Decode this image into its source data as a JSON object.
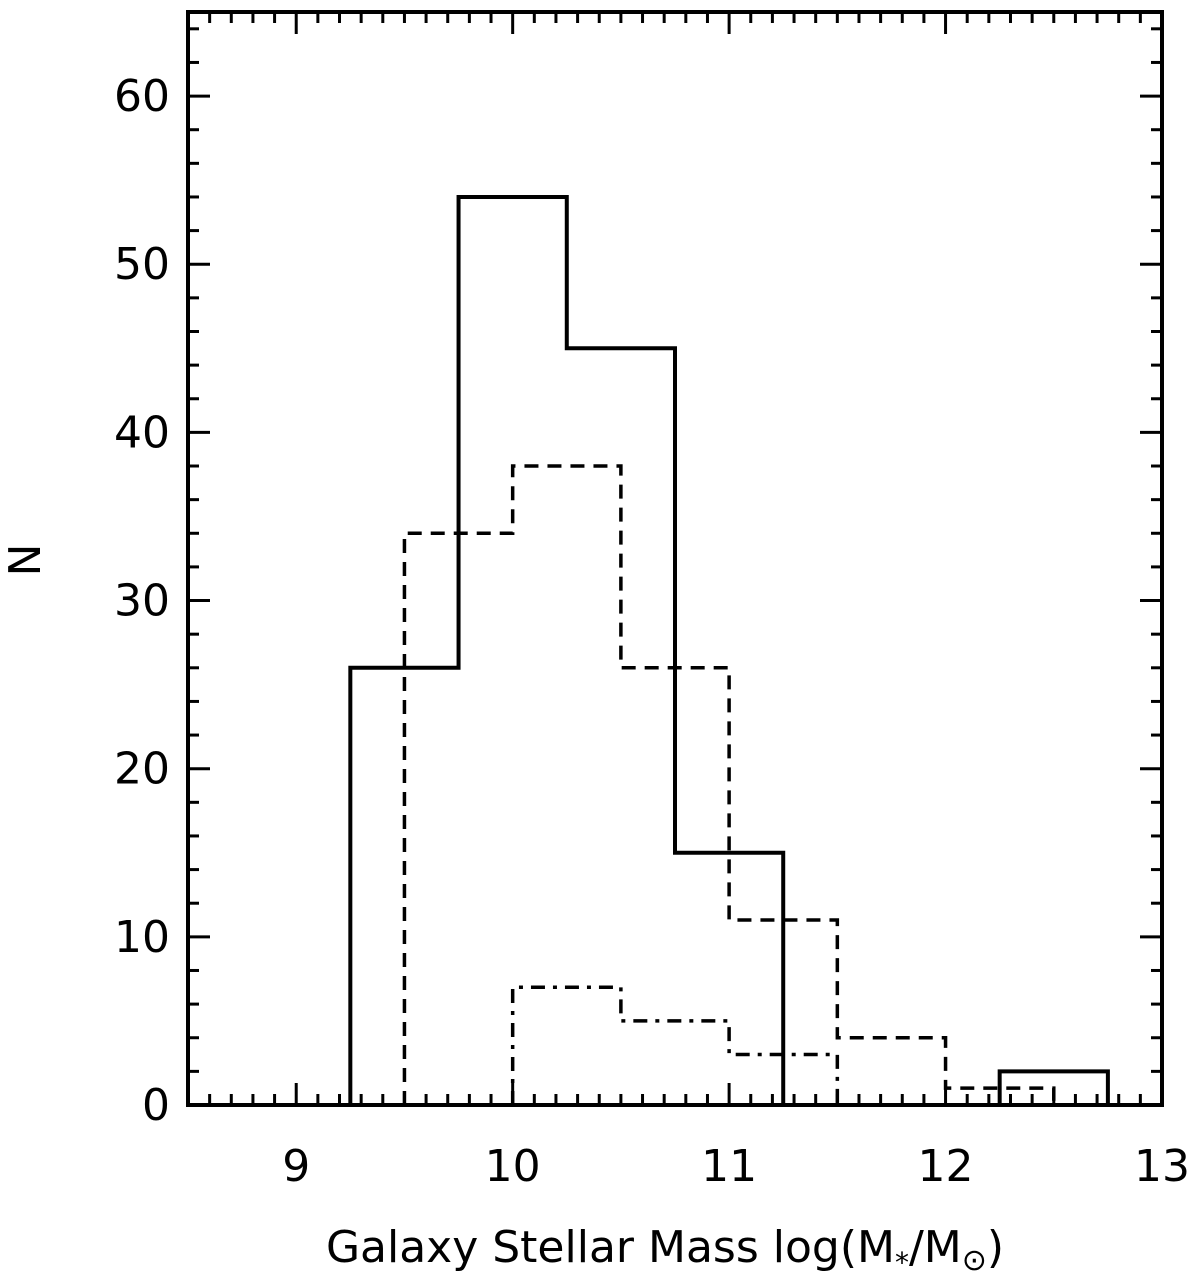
{
  "chart_data": {
    "type": "histogram",
    "xlabel": "Galaxy Stellar Mass log(M",
    "xlabel_sub1": "*",
    "xlabel_mid": "/M",
    "xlabel_sub2": "⊙",
    "xlabel_end": ")",
    "ylabel": "N",
    "xlim": [
      8.5,
      13
    ],
    "ylim": [
      0,
      65
    ],
    "x_ticks": [
      9,
      10,
      11,
      12,
      13
    ],
    "x_tick_labels": [
      "9",
      "10",
      "11",
      "12",
      "13"
    ],
    "y_ticks": [
      0,
      10,
      20,
      30,
      40,
      50,
      60
    ],
    "y_tick_labels": [
      "0",
      "10",
      "20",
      "30",
      "40",
      "50",
      "60"
    ],
    "series": [
      {
        "style": "solid",
        "bin_edges": [
          9.25,
          9.75,
          10.25,
          10.75,
          11.25,
          11.75,
          12.25,
          12.75
        ],
        "counts": [
          26,
          54,
          45,
          15,
          0,
          0,
          2
        ]
      },
      {
        "style": "dashed",
        "bin_edges": [
          9.5,
          10.0,
          10.5,
          11.0,
          11.5,
          12.0,
          12.5
        ],
        "counts": [
          34,
          38,
          26,
          11,
          4,
          1
        ]
      },
      {
        "style": "dash-dot",
        "bin_edges": [
          10.0,
          10.5,
          11.0,
          11.5
        ],
        "counts": [
          7,
          5,
          3
        ]
      }
    ]
  }
}
